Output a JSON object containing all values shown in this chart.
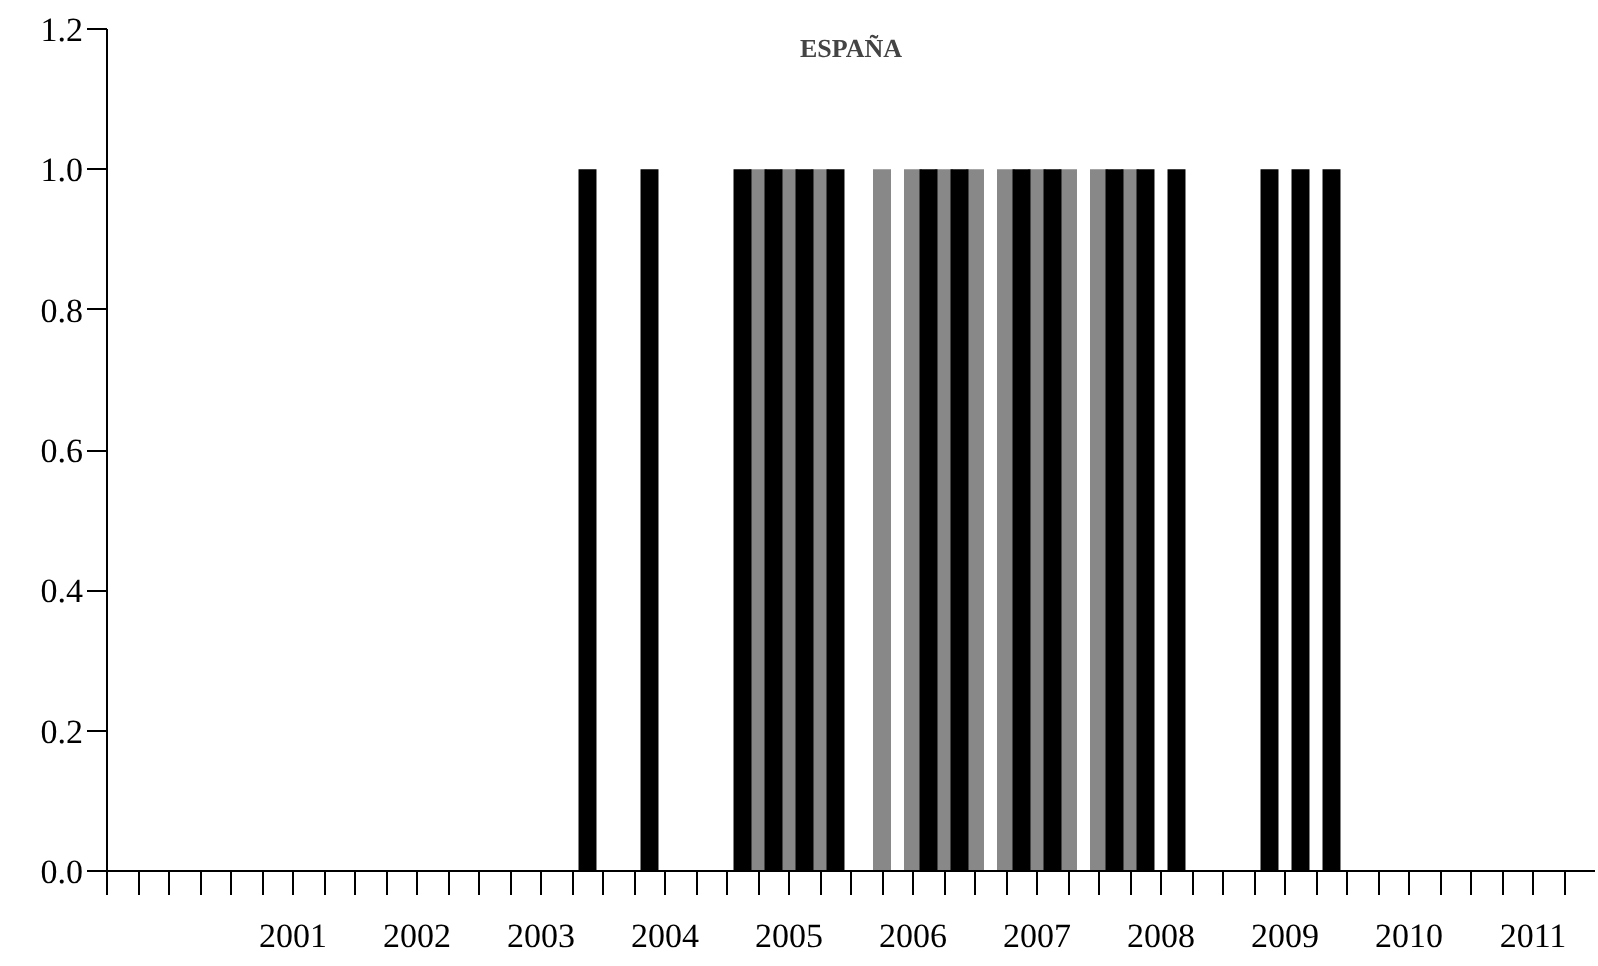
{
  "chart_data": {
    "type": "bar",
    "title": "ESPAÑA",
    "series": [
      {
        "color": "#888888",
        "x": [
          2004.75,
          2005.0,
          2005.25,
          2005.75,
          2006.0,
          2006.25,
          2006.5,
          2006.75,
          2007.0,
          2007.25,
          2007.5,
          2007.75
        ],
        "values": [
          1,
          1,
          1,
          1,
          1,
          1,
          1,
          1,
          1,
          1,
          1,
          1
        ]
      },
      {
        "color": "#000000",
        "x": [
          2003.375,
          2003.875,
          2004.625,
          2004.875,
          2005.125,
          2005.375,
          2006.125,
          2006.375,
          2006.875,
          2007.125,
          2007.625,
          2007.875,
          2008.125,
          2008.875,
          2009.125,
          2009.375
        ],
        "values": [
          1,
          1,
          1,
          1,
          1,
          1,
          1,
          1,
          1,
          1,
          1,
          1,
          1,
          1,
          1,
          1
        ]
      }
    ],
    "xlim": [
      1999.5,
      2011.5
    ],
    "xticks": [
      {
        "value": 1999.5,
        "label": null
      },
      {
        "value": 1999.75,
        "label": null
      },
      {
        "value": 2000.0,
        "label": null
      },
      {
        "value": 2000.25,
        "label": null
      },
      {
        "value": 2000.5,
        "label": null
      },
      {
        "value": 2000.75,
        "label": null
      },
      {
        "value": 2001,
        "label": "2001"
      },
      {
        "value": 2001.25,
        "label": null
      },
      {
        "value": 2001.5,
        "label": null
      },
      {
        "value": 2001.75,
        "label": null
      },
      {
        "value": 2002,
        "label": "2002"
      },
      {
        "value": 2002.25,
        "label": null
      },
      {
        "value": 2002.5,
        "label": null
      },
      {
        "value": 2002.75,
        "label": null
      },
      {
        "value": 2003,
        "label": "2003"
      },
      {
        "value": 2003.25,
        "label": null
      },
      {
        "value": 2003.5,
        "label": null
      },
      {
        "value": 2003.75,
        "label": null
      },
      {
        "value": 2004,
        "label": "2004"
      },
      {
        "value": 2004.25,
        "label": null
      },
      {
        "value": 2004.5,
        "label": null
      },
      {
        "value": 2004.75,
        "label": null
      },
      {
        "value": 2005,
        "label": "2005"
      },
      {
        "value": 2005.25,
        "label": null
      },
      {
        "value": 2005.5,
        "label": null
      },
      {
        "value": 2005.75,
        "label": null
      },
      {
        "value": 2006,
        "label": "2006"
      },
      {
        "value": 2006.25,
        "label": null
      },
      {
        "value": 2006.5,
        "label": null
      },
      {
        "value": 2006.75,
        "label": null
      },
      {
        "value": 2007,
        "label": "2007"
      },
      {
        "value": 2007.25,
        "label": null
      },
      {
        "value": 2007.5,
        "label": null
      },
      {
        "value": 2007.75,
        "label": null
      },
      {
        "value": 2008,
        "label": "2008"
      },
      {
        "value": 2008.25,
        "label": null
      },
      {
        "value": 2008.5,
        "label": null
      },
      {
        "value": 2008.75,
        "label": null
      },
      {
        "value": 2009,
        "label": "2009"
      },
      {
        "value": 2009.25,
        "label": null
      },
      {
        "value": 2009.5,
        "label": null
      },
      {
        "value": 2009.75,
        "label": null
      },
      {
        "value": 2010,
        "label": "2010"
      },
      {
        "value": 2010.25,
        "label": null
      },
      {
        "value": 2010.5,
        "label": null
      },
      {
        "value": 2010.75,
        "label": null
      },
      {
        "value": 2011,
        "label": "2011"
      },
      {
        "value": 2011.25,
        "label": null
      }
    ],
    "ylim": [
      0,
      1.2
    ],
    "yticks": [
      {
        "value": 0,
        "label": "0.0"
      },
      {
        "value": 0.2,
        "label": "0.2"
      },
      {
        "value": 0.4,
        "label": "0.4"
      },
      {
        "value": 0.6,
        "label": "0.6"
      },
      {
        "value": 0.8,
        "label": "0.8"
      },
      {
        "value": 1.0,
        "label": "1.0"
      },
      {
        "value": 1.2,
        "label": "1.2"
      }
    ],
    "grid": false
  }
}
